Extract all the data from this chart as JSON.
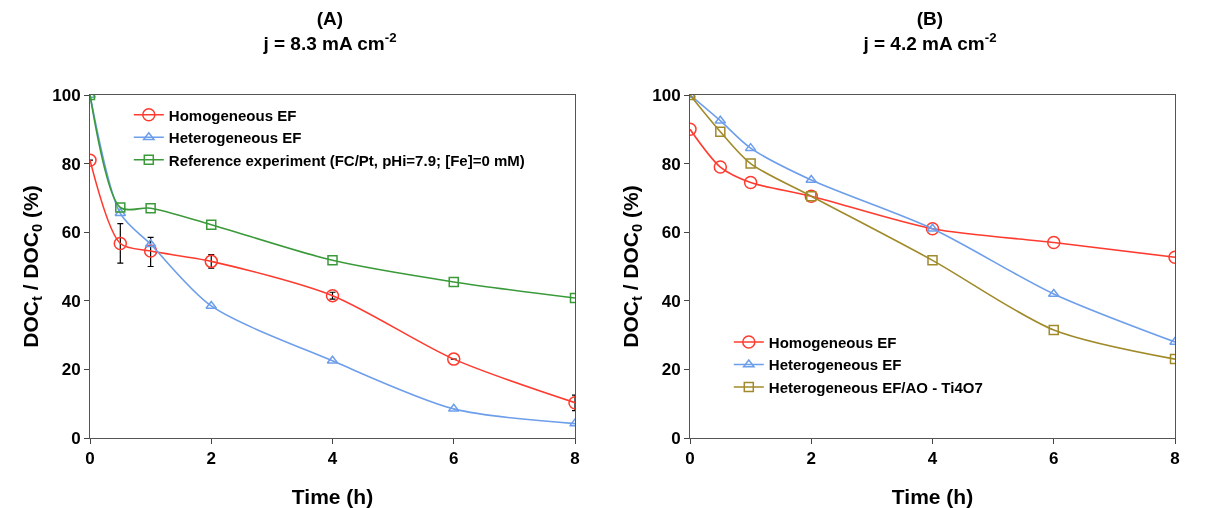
{
  "chart_data": [
    {
      "type": "line",
      "title": "(A)",
      "subtitle": "j = 8.3 mA cm$^{-2}$",
      "xlabel": "Time (h)",
      "ylabel": "DOC$_{t}$ / DOC$_{0}$ (%)",
      "x": [
        0,
        0.5,
        1,
        2,
        4,
        6,
        8
      ],
      "series": [
        {
          "name": "Homogeneous EF",
          "color": "#ff3b2f",
          "marker": "circle",
          "values": [
            81,
            56.7,
            54.5,
            51.5,
            41.5,
            23,
            10.3
          ],
          "errors": [
            null,
            [
              51,
              62.5
            ],
            [
              50,
              58.5
            ],
            [
              49.5,
              53.5
            ],
            [
              40.5,
              42.5
            ],
            null,
            [
              8,
              12.5
            ]
          ]
        },
        {
          "name": "Heterogeneous EF",
          "color": "#6d9eeb",
          "marker": "triangle",
          "values": [
            100,
            65.5,
            56.5,
            38.5,
            22.5,
            8.5,
            4.2
          ]
        },
        {
          "name": "Reference experiment (FC/Pt, pHi=7.9; [Fe]=0 mM)",
          "color": "#3a9a3a",
          "marker": "square",
          "values": [
            100,
            67.2,
            67,
            62.2,
            51.8,
            45.5,
            40.8
          ]
        }
      ],
      "xlim": [
        0,
        8
      ],
      "xticks": [
        0,
        2,
        4,
        6,
        8
      ],
      "ylim": [
        0,
        100
      ],
      "yticks": [
        0,
        20,
        40,
        60,
        80,
        100
      ],
      "grid": false,
      "legend": "top",
      "line_style": "solid"
    },
    {
      "type": "line",
      "title": "(B)",
      "subtitle": "j = 4.2 mA cm$^{-2}$",
      "xlabel": "Time (h)",
      "ylabel": "DOC$_{t}$ / DOC$_{0}$ (%)",
      "x": [
        0,
        0.5,
        1,
        2,
        4,
        6,
        8
      ],
      "series": [
        {
          "name": "Homogeneous EF",
          "color": "#ff3b2f",
          "marker": "circle",
          "values": [
            90,
            79,
            74.5,
            70.5,
            61,
            57,
            52.7
          ]
        },
        {
          "name": "Heterogeneous EF",
          "color": "#6d9eeb",
          "marker": "triangle",
          "values": [
            100,
            92.5,
            84.5,
            75.2,
            61,
            42,
            28
          ]
        },
        {
          "name": "Heterogeneous EF/AO - Ti4O7",
          "color": "#a08a2a",
          "marker": "square",
          "values": [
            100,
            89.3,
            80,
            70.5,
            51.8,
            31.5,
            23
          ]
        }
      ],
      "xlim": [
        0,
        8
      ],
      "xticks": [
        0,
        2,
        4,
        6,
        8
      ],
      "ylim": [
        0,
        100
      ],
      "yticks": [
        0,
        20,
        40,
        60,
        80,
        100
      ],
      "grid": false,
      "legend": "bottom left",
      "line_style": "solid"
    }
  ]
}
